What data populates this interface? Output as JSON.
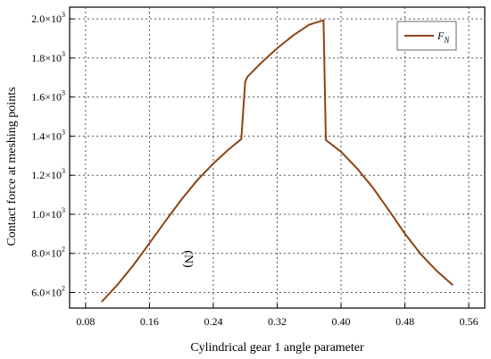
{
  "chart_data": {
    "type": "line",
    "xlabel": "Cylindrical gear 1 angle parameter",
    "ylabel": "Contact force at meshing points",
    "ylabel_unit": "(N)",
    "xlim": [
      0.06,
      0.58
    ],
    "ylim": [
      520,
      2060
    ],
    "x_ticks": [
      0.08,
      0.16,
      0.24,
      0.32,
      0.4,
      0.48,
      0.56
    ],
    "x_tick_labels": [
      "0.08",
      "0.16",
      "0.24",
      "0.32",
      "0.40",
      "0.48",
      "0.56"
    ],
    "y_ticks": [
      600,
      800,
      1000,
      1200,
      1400,
      1600,
      1800,
      2000
    ],
    "y_tick_labels": [
      {
        "mantissa": "6.0×10",
        "exp": "2"
      },
      {
        "mantissa": "8.0×10",
        "exp": "2"
      },
      {
        "mantissa": "1.0×10",
        "exp": "3"
      },
      {
        "mantissa": "1.2×10",
        "exp": "3"
      },
      {
        "mantissa": "1.4×10",
        "exp": "3"
      },
      {
        "mantissa": "1.6×10",
        "exp": "3"
      },
      {
        "mantissa": "1.8×10",
        "exp": "3"
      },
      {
        "mantissa": "2.0×10",
        "exp": "3"
      }
    ],
    "grid": true,
    "legend": {
      "position": "top-right",
      "symbol": "F",
      "subscript": "N"
    },
    "series": [
      {
        "color": "#8B4513",
        "x": [
          0.1,
          0.12,
          0.14,
          0.16,
          0.18,
          0.2,
          0.22,
          0.24,
          0.26,
          0.275,
          0.28,
          0.283,
          0.3,
          0.32,
          0.34,
          0.36,
          0.378,
          0.381,
          0.4,
          0.42,
          0.44,
          0.46,
          0.48,
          0.5,
          0.52,
          0.54
        ],
        "y": [
          552,
          640,
          740,
          852,
          965,
          1075,
          1175,
          1260,
          1335,
          1385,
          1680,
          1705,
          1775,
          1850,
          1915,
          1970,
          1993,
          1380,
          1320,
          1235,
          1135,
          1020,
          900,
          795,
          710,
          638
        ]
      }
    ]
  }
}
